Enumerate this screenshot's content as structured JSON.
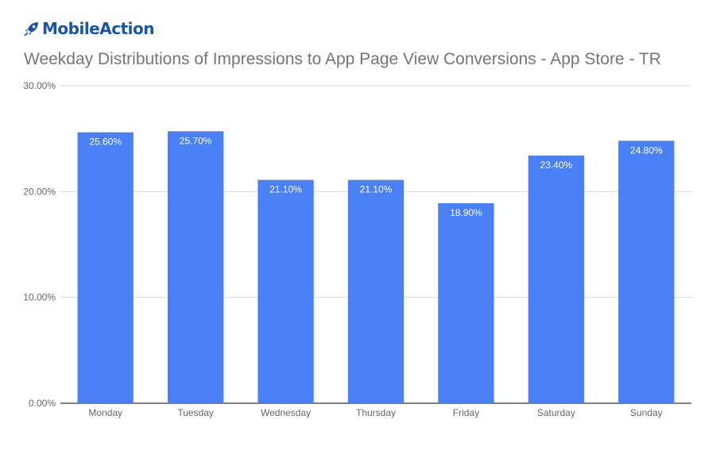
{
  "brand": {
    "name": "MobileAction",
    "icon": "rocket-logo-icon",
    "color": "#1c55a3"
  },
  "chart_data": {
    "type": "bar",
    "title": "Weekday Distributions of Impressions to App Page View Conversions - App Store - TR",
    "categories": [
      "Monday",
      "Tuesday",
      "Wednesday",
      "Thursday",
      "Friday",
      "Saturday",
      "Sunday"
    ],
    "values": [
      25.6,
      25.7,
      21.1,
      21.1,
      18.9,
      23.4,
      24.8
    ],
    "data_labels": [
      "25.60%",
      "25.70%",
      "21.10%",
      "21.10%",
      "18.90%",
      "23.40%",
      "24.80%"
    ],
    "y_ticks": [
      0,
      10,
      20,
      30
    ],
    "y_tick_labels": [
      "0.00%",
      "10.00%",
      "20.00%",
      "30.00%"
    ],
    "ylim": [
      0,
      30
    ],
    "xlabel": "",
    "ylabel": "",
    "grid": true,
    "legend": "none",
    "bar_color": "#4a80f5"
  }
}
